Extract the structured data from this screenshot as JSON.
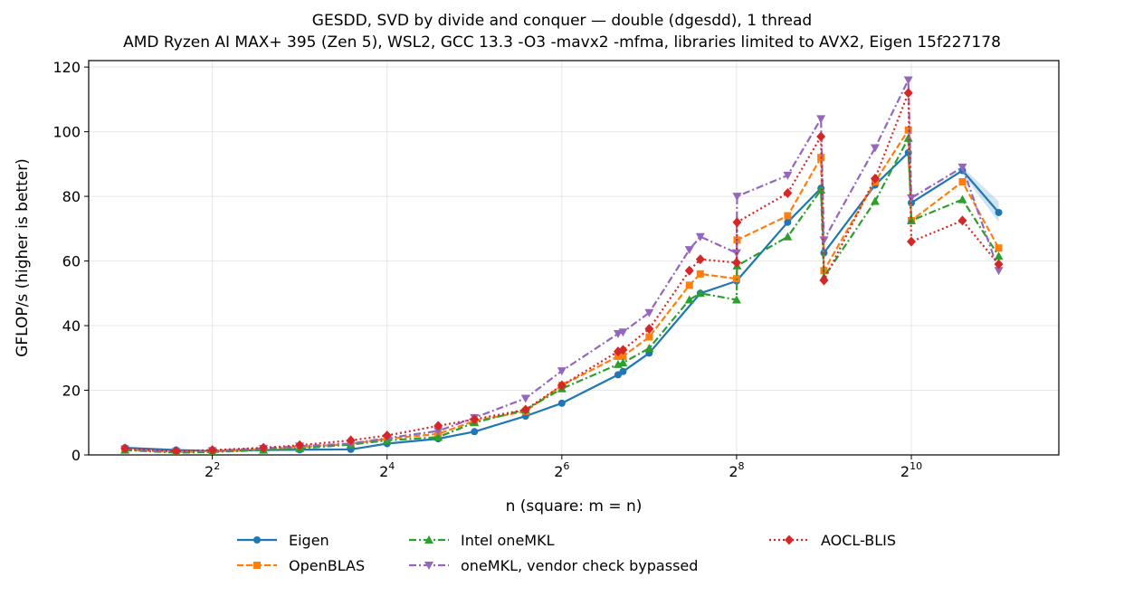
{
  "chart_data": {
    "type": "line",
    "title": "GESDD, SVD by divide and conquer — double (dgesdd), 1 thread",
    "subtitle": "AMD Ryzen AI MAX+ 395 (Zen 5), WSL2, GCC 13.3 -O3 -mavx2 -mfma, libraries limited to AVX2, Eigen 15f227178",
    "xlabel": "n (square: m = n)",
    "ylabel": "GFLOP/s (higher is better)",
    "x_scale": "log2",
    "xlim": [
      1.5,
      3300
    ],
    "ylim": [
      0,
      122
    ],
    "x_ticks": [
      4,
      16,
      64,
      256,
      1024
    ],
    "x_tick_labels": [
      {
        "base": "2",
        "exp": "2"
      },
      {
        "base": "2",
        "exp": "4"
      },
      {
        "base": "2",
        "exp": "6"
      },
      {
        "base": "2",
        "exp": "8"
      },
      {
        "base": "2",
        "exp": "10"
      }
    ],
    "y_ticks": [
      0,
      20,
      40,
      60,
      80,
      100,
      120
    ],
    "y_tick_labels": [
      "0",
      "20",
      "40",
      "60",
      "80",
      "100",
      "120"
    ],
    "grid": true,
    "legend_position": "below",
    "series": [
      {
        "name": "Eigen",
        "color": "#1f77b4",
        "marker": "circle",
        "linestyle": "solid",
        "x": [
          2,
          3,
          4,
          6,
          8,
          12,
          16,
          24,
          32,
          48,
          64,
          100,
          104,
          128,
          192,
          256,
          384,
          500,
          512,
          768,
          1000,
          1024,
          1536,
          2048
        ],
        "y": [
          2.2,
          1.5,
          1.2,
          1.5,
          1.6,
          1.7,
          3.5,
          5.0,
          7.2,
          12.0,
          16.0,
          24.8,
          25.8,
          31.5,
          50.0,
          53.8,
          72.0,
          82.5,
          62.5,
          83.5,
          93.5,
          78.0,
          88.0,
          75.0
        ],
        "band_x": [
          1536,
          2048
        ],
        "band_lower": [
          87.0,
          72.0
        ],
        "band_upper": [
          89.0,
          78.5
        ]
      },
      {
        "name": "OpenBLAS",
        "color": "#ff7f0e",
        "marker": "square",
        "linestyle": "dashed",
        "x": [
          2,
          3,
          4,
          6,
          8,
          12,
          16,
          24,
          32,
          48,
          64,
          100,
          104,
          128,
          176,
          192,
          256,
          257,
          384,
          500,
          512,
          768,
          1000,
          1024,
          1536,
          2048
        ],
        "y": [
          1.6,
          0.9,
          1.0,
          1.8,
          2.4,
          3.4,
          5.0,
          6.5,
          10.5,
          13.5,
          21.5,
          30.5,
          30.5,
          36.5,
          52.5,
          56.0,
          54.5,
          66.5,
          74.0,
          92.0,
          57.0,
          84.5,
          100.5,
          72.5,
          84.5,
          64.0
        ]
      },
      {
        "name": "Intel oneMKL",
        "color": "#2ca02c",
        "marker": "triangle-up",
        "linestyle": "dashdot",
        "x": [
          2,
          3,
          4,
          6,
          8,
          12,
          16,
          24,
          32,
          48,
          64,
          100,
          104,
          128,
          176,
          192,
          256,
          257,
          384,
          500,
          512,
          768,
          1000,
          1024,
          1536,
          2048
        ],
        "y": [
          1.5,
          0.7,
          0.9,
          1.5,
          2.0,
          3.2,
          4.5,
          5.5,
          10.0,
          14.0,
          20.5,
          28.0,
          28.5,
          33.0,
          48.0,
          50.0,
          48.0,
          58.5,
          67.5,
          82.0,
          55.0,
          78.5,
          98.0,
          72.5,
          79.0,
          61.5
        ]
      },
      {
        "name": "oneMKL, vendor check bypassed",
        "color": "#9467bd",
        "marker": "triangle-down",
        "linestyle": "dashdot",
        "x": [
          2,
          3,
          4,
          6,
          8,
          12,
          16,
          24,
          32,
          48,
          64,
          100,
          104,
          128,
          176,
          192,
          256,
          257,
          384,
          500,
          512,
          768,
          1000,
          1024,
          1536,
          2048
        ],
        "y": [
          1.8,
          1.0,
          1.3,
          2.0,
          2.7,
          3.5,
          5.2,
          7.4,
          11.5,
          17.5,
          26.0,
          37.5,
          38.0,
          44.0,
          63.5,
          67.5,
          62.5,
          80.0,
          86.5,
          104.0,
          66.5,
          95.0,
          116.0,
          79.5,
          89.0,
          57.0
        ]
      },
      {
        "name": "AOCL-BLIS",
        "color": "#d62728",
        "marker": "diamond",
        "linestyle": "dotted",
        "x": [
          2,
          3,
          4,
          6,
          8,
          12,
          16,
          24,
          32,
          48,
          64,
          100,
          104,
          128,
          176,
          192,
          256,
          257,
          384,
          500,
          512,
          768,
          1000,
          1024,
          1536,
          2048
        ],
        "y": [
          2.0,
          1.2,
          1.5,
          2.2,
          3.0,
          4.5,
          6.0,
          9.0,
          11.0,
          14.0,
          21.5,
          32.0,
          32.5,
          39.0,
          57.0,
          60.5,
          59.5,
          72.0,
          81.0,
          98.5,
          54.0,
          85.5,
          112.0,
          66.0,
          72.5,
          59.0
        ]
      }
    ]
  }
}
